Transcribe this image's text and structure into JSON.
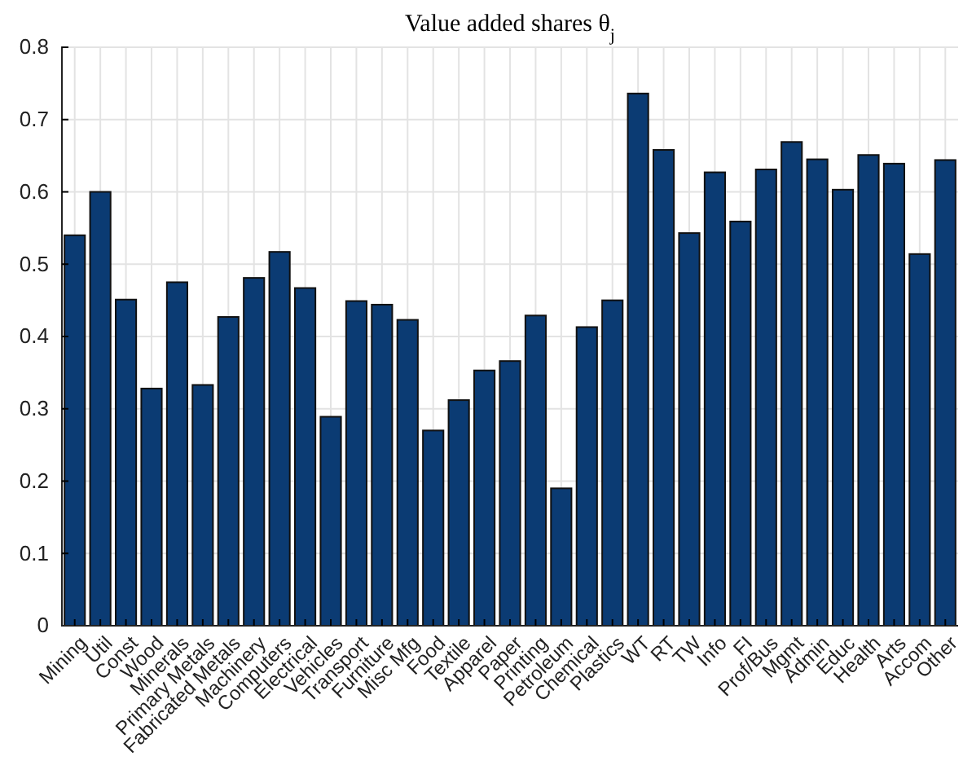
{
  "chart_data": {
    "type": "bar",
    "title": "Value added shares θ$_{j}$",
    "categories": [
      "Mining",
      "Util",
      "Const",
      "Wood",
      "Minerals",
      "Primary Metals",
      "Fabricated Metals",
      "Machinery",
      "Computers",
      "Electrical",
      "Vehicles",
      "Transport",
      "Furniture",
      "Misc Mfg",
      "Food",
      "Textile",
      "Apparel",
      "Paper",
      "Printing",
      "Petroleum",
      "Chemical",
      "Plastics",
      "WT",
      "RT",
      "TW",
      "Info",
      "FI",
      "Prof/Bus",
      "Mgmt",
      "Admin",
      "Educ",
      "Health",
      "Arts",
      "Accom",
      "Other"
    ],
    "values": [
      0.54,
      0.6,
      0.451,
      0.328,
      0.475,
      0.333,
      0.427,
      0.481,
      0.517,
      0.467,
      0.289,
      0.449,
      0.444,
      0.423,
      0.27,
      0.312,
      0.353,
      0.366,
      0.429,
      0.19,
      0.413,
      0.45,
      0.736,
      0.658,
      0.543,
      0.627,
      0.559,
      0.631,
      0.669,
      0.645,
      0.603,
      0.651,
      0.639,
      0.514,
      0.644
    ],
    "color": "#0b3b73",
    "ylim": [
      0,
      0.8
    ],
    "yticks": [
      0,
      0.1,
      0.2,
      0.3,
      0.4,
      0.5,
      0.6,
      0.7,
      0.8
    ],
    "grid": true
  }
}
